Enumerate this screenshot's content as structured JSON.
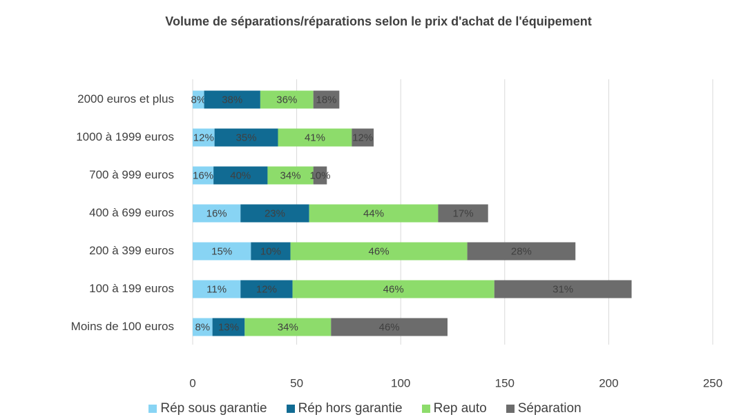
{
  "chart_data": {
    "type": "stacked-bar-horizontal",
    "title": "Volume de séparations/réparations selon le prix d'achat de l'équipement",
    "categories": [
      "2000 euros et plus",
      "1000 à 1999 euros",
      "700 à 999 euros",
      "400 à 699 euros",
      "200 à 399 euros",
      "100 à 199 euros",
      "Moins de 100 euros"
    ],
    "series": [
      {
        "name": "Rép sous garantie",
        "color": "#88d4f4",
        "values": [
          5.5,
          10.5,
          10,
          23,
          28,
          23,
          9.5
        ],
        "value_labels": [
          "8%",
          "12%",
          "16%",
          "16%",
          "15%",
          "11%",
          "8%"
        ]
      },
      {
        "name": "Rép hors garantie",
        "color": "#116b93",
        "values": [
          27,
          30.5,
          26,
          33,
          19,
          25,
          15.5
        ],
        "value_labels": [
          "38%",
          "35%",
          "40%",
          "23%",
          "10%",
          "12%",
          "13%"
        ]
      },
      {
        "name": "Rep auto",
        "color": "#8ddc6b",
        "values": [
          25.5,
          35.5,
          22,
          62,
          85,
          97,
          41.5
        ],
        "value_labels": [
          "36%",
          "41%",
          "34%",
          "44%",
          "46%",
          "46%",
          "34%"
        ]
      },
      {
        "name": "Séparation",
        "color": "#6c6c6c",
        "values": [
          12.5,
          10.5,
          6.5,
          24,
          52,
          66,
          56
        ],
        "value_labels": [
          "18%",
          "12%",
          "10%",
          "17%",
          "28%",
          "31%",
          "46%"
        ]
      }
    ],
    "xlim": [
      0,
      250
    ],
    "xticks": [
      0,
      50,
      100,
      150,
      200,
      250
    ],
    "grid": true
  }
}
